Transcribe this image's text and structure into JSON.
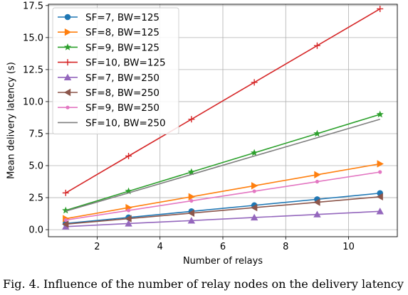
{
  "chart_data": {
    "type": "line",
    "xlabel": "Number of relays",
    "ylabel": "Mean delivery latency (s)",
    "xlim": [
      0.45,
      11.55
    ],
    "ylim": [
      -0.55,
      17.6
    ],
    "xticks": [
      2,
      4,
      6,
      8,
      10
    ],
    "yticks": [
      0.0,
      2.5,
      5.0,
      7.5,
      10.0,
      12.5,
      15.0,
      17.5
    ],
    "xtick_labels": [
      "2",
      "4",
      "6",
      "8",
      "10"
    ],
    "ytick_labels": [
      "0.0",
      "2.5",
      "5.0",
      "7.5",
      "10.0",
      "12.5",
      "15.0",
      "17.5"
    ],
    "x": [
      1,
      3,
      5,
      7,
      9,
      11
    ],
    "grid": true,
    "legend_position": "upper-left",
    "series": [
      {
        "name": "SF=7, BW=125",
        "color": "#1f77b4",
        "marker": "circle",
        "values": [
          0.49,
          0.95,
          1.43,
          1.9,
          2.37,
          2.85
        ]
      },
      {
        "name": "SF=8, BW=125",
        "color": "#ff7f0e",
        "marker": "triangle-right",
        "values": [
          0.86,
          1.72,
          2.57,
          3.43,
          4.29,
          5.14
        ]
      },
      {
        "name": "SF=9, BW=125",
        "color": "#2ca02c",
        "marker": "star",
        "values": [
          1.5,
          3.0,
          4.5,
          6.0,
          7.5,
          9.0
        ]
      },
      {
        "name": "SF=10, BW=125",
        "color": "#d62728",
        "marker": "plus",
        "values": [
          2.87,
          5.75,
          8.62,
          11.5,
          14.37,
          17.24
        ]
      },
      {
        "name": "SF=7, BW=250",
        "color": "#9467bd",
        "marker": "triangle-up",
        "values": [
          0.24,
          0.48,
          0.71,
          0.95,
          1.19,
          1.43
        ]
      },
      {
        "name": "SF=8, BW=250",
        "color": "#8c564b",
        "marker": "triangle-left",
        "values": [
          0.43,
          0.86,
          1.29,
          1.72,
          2.14,
          2.57
        ]
      },
      {
        "name": "SF=9, BW=250",
        "color": "#e377c2",
        "marker": "point",
        "values": [
          0.75,
          1.5,
          2.25,
          3.0,
          3.75,
          4.5
        ]
      },
      {
        "name": "SF=10, BW=250",
        "color": "#7f7f7f",
        "marker": "none",
        "values": [
          1.44,
          2.87,
          4.31,
          5.75,
          7.18,
          8.62
        ]
      }
    ]
  },
  "caption": "Fig. 4. Influence of the number of relay nodes on the delivery latency"
}
